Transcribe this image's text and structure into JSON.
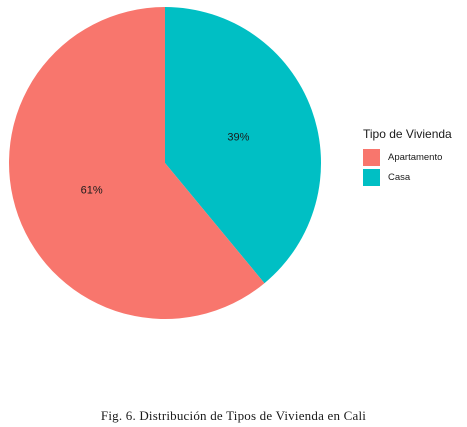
{
  "chart_data": {
    "type": "pie",
    "title": "",
    "legend_title": "Tipo de Vivienda",
    "legend_position": "right",
    "slices": [
      {
        "label": "Apartamento",
        "value": 61,
        "display": "61%",
        "color": "#F8766D"
      },
      {
        "label": "Casa",
        "value": 39,
        "display": "39%",
        "color": "#00BFC4"
      }
    ]
  },
  "caption": "Fig. 6.  Distribución de Tipos de Vivienda en Cali"
}
